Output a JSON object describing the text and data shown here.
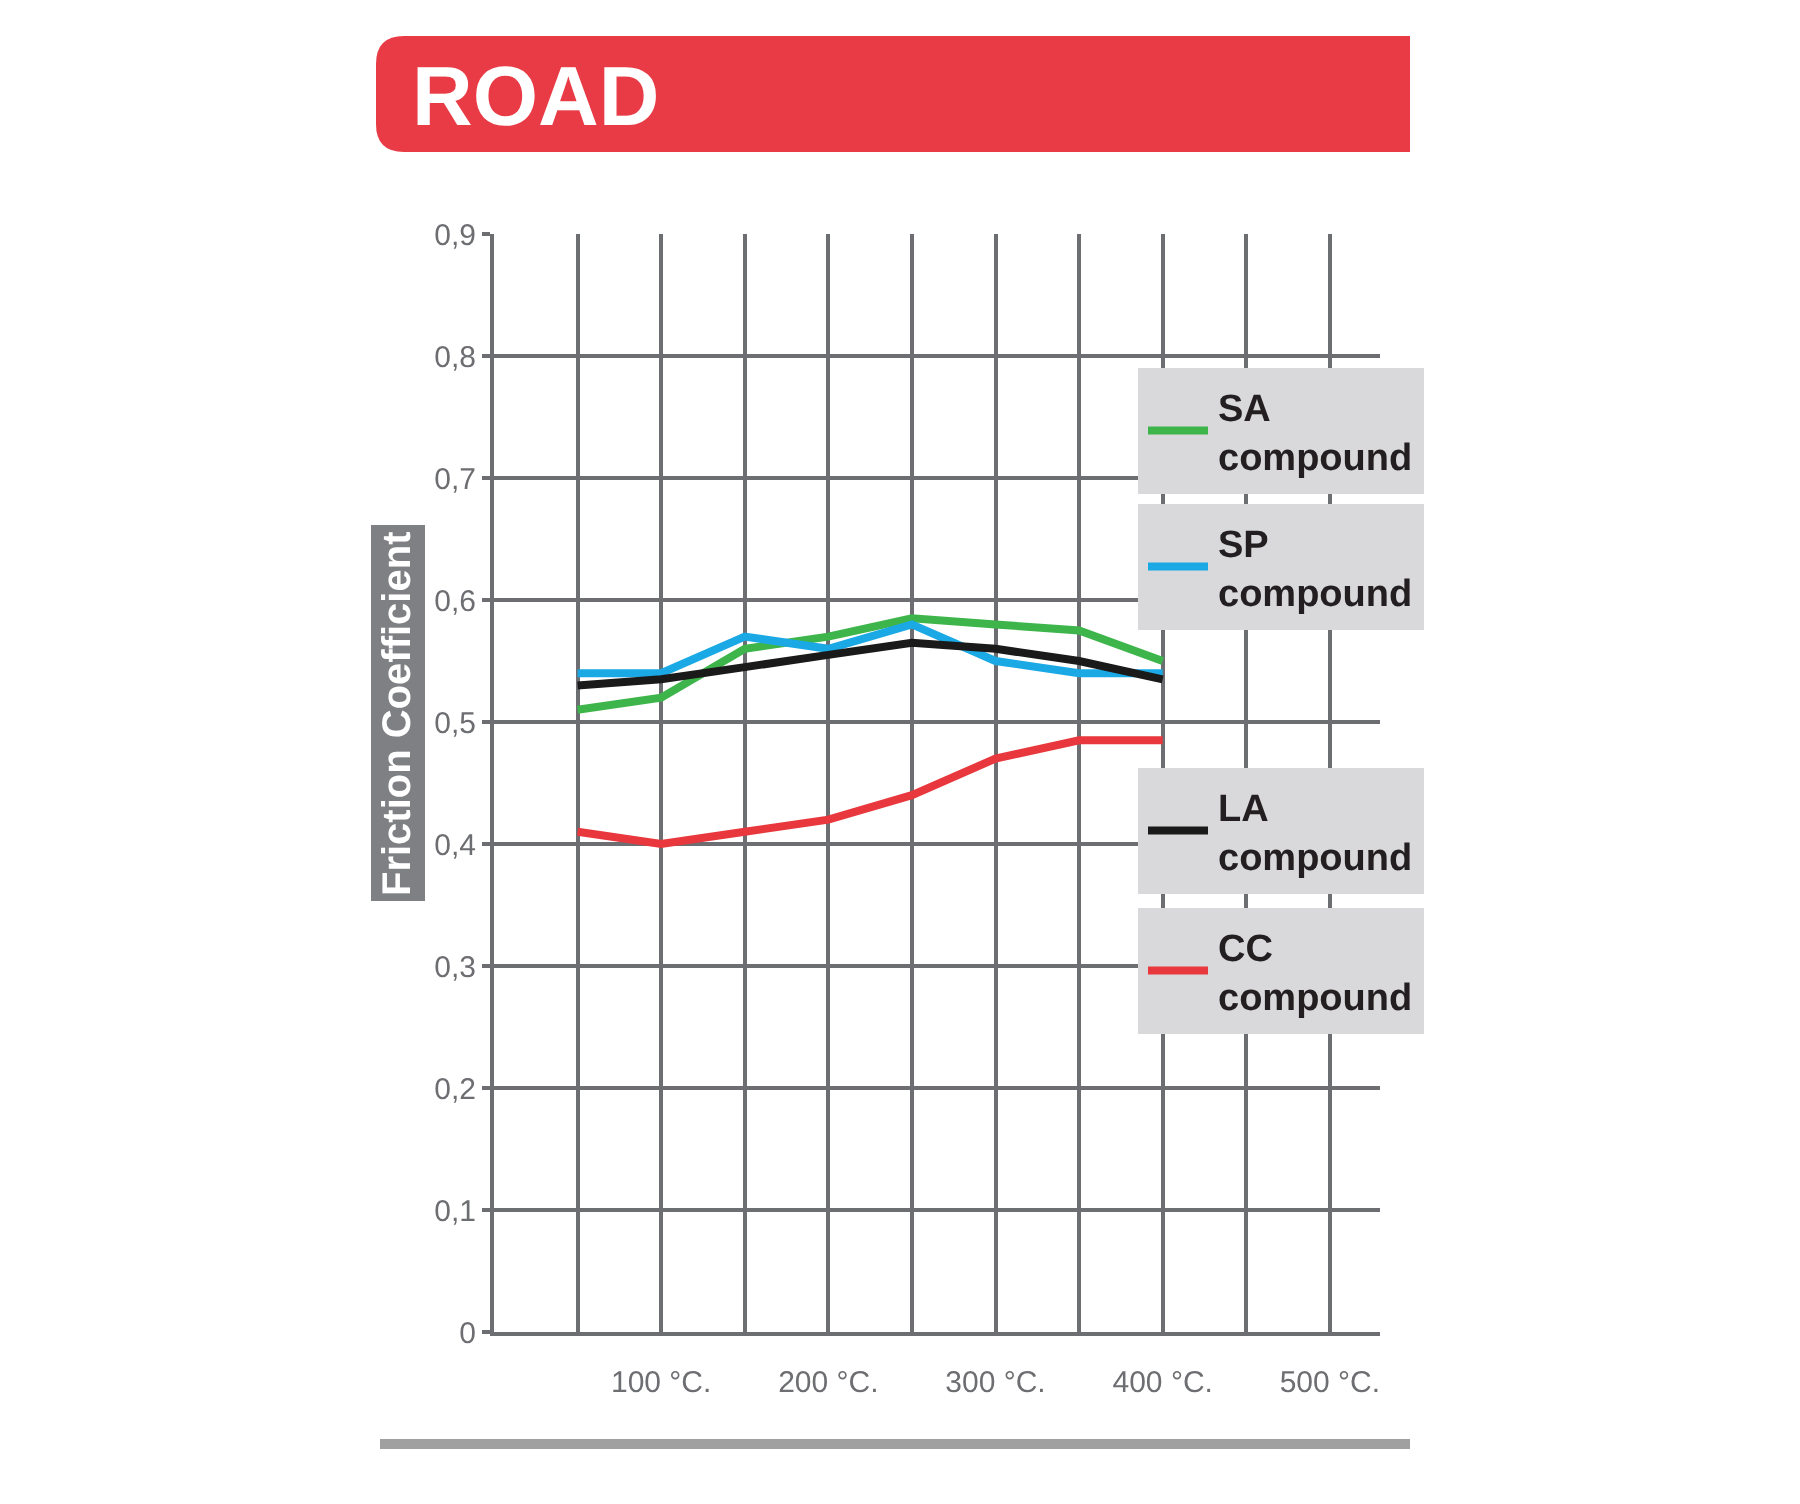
{
  "chart_data": {
    "type": "line",
    "title": "ROAD",
    "ylabel": "Friction Coefficient",
    "x": [
      50,
      100,
      150,
      200,
      250,
      300,
      350,
      400
    ],
    "series": [
      {
        "name": "SA compound",
        "color": "#3db54a",
        "values": [
          0.51,
          0.52,
          0.56,
          0.57,
          0.585,
          0.58,
          0.575,
          0.55
        ]
      },
      {
        "name": "SP compound",
        "color": "#1ba9e5",
        "values": [
          0.54,
          0.54,
          0.57,
          0.56,
          0.58,
          0.55,
          0.54,
          0.54
        ]
      },
      {
        "name": "LA compound",
        "color": "#1a1a1a",
        "values": [
          0.53,
          0.535,
          0.545,
          0.555,
          0.565,
          0.56,
          0.55,
          0.535
        ]
      },
      {
        "name": "CC compound",
        "color": "#e8383d",
        "values": [
          0.41,
          0.4,
          0.41,
          0.42,
          0.44,
          0.47,
          0.485,
          0.485
        ]
      }
    ],
    "xlim": [
      0,
      530
    ],
    "xticks": [
      {
        "value": 50,
        "label": null
      },
      {
        "value": 100,
        "label": "100 °C."
      },
      {
        "value": 150,
        "label": null
      },
      {
        "value": 200,
        "label": "200 °C."
      },
      {
        "value": 250,
        "label": null
      },
      {
        "value": 300,
        "label": "300 °C."
      },
      {
        "value": 350,
        "label": null
      },
      {
        "value": 400,
        "label": "400 °C."
      },
      {
        "value": 450,
        "label": null
      },
      {
        "value": 500,
        "label": "500 °C."
      }
    ],
    "ylim": [
      0,
      0.9
    ],
    "yticks": [
      0,
      {
        "value": 0.1,
        "label": "0,1"
      },
      {
        "value": 0.2,
        "label": "0,2"
      },
      {
        "value": 0.3,
        "label": "0,3"
      },
      {
        "value": 0.4,
        "label": "0,4"
      },
      {
        "value": 0.5,
        "label": "0,5"
      },
      {
        "value": 0.6,
        "label": "0,6"
      },
      {
        "value": 0.7,
        "label": "0,7"
      },
      {
        "value": 0.8,
        "label": "0,8"
      },
      {
        "value": 0.9,
        "label": "0,9"
      }
    ],
    "grid": true,
    "legend": "right",
    "line_style": "solid"
  }
}
